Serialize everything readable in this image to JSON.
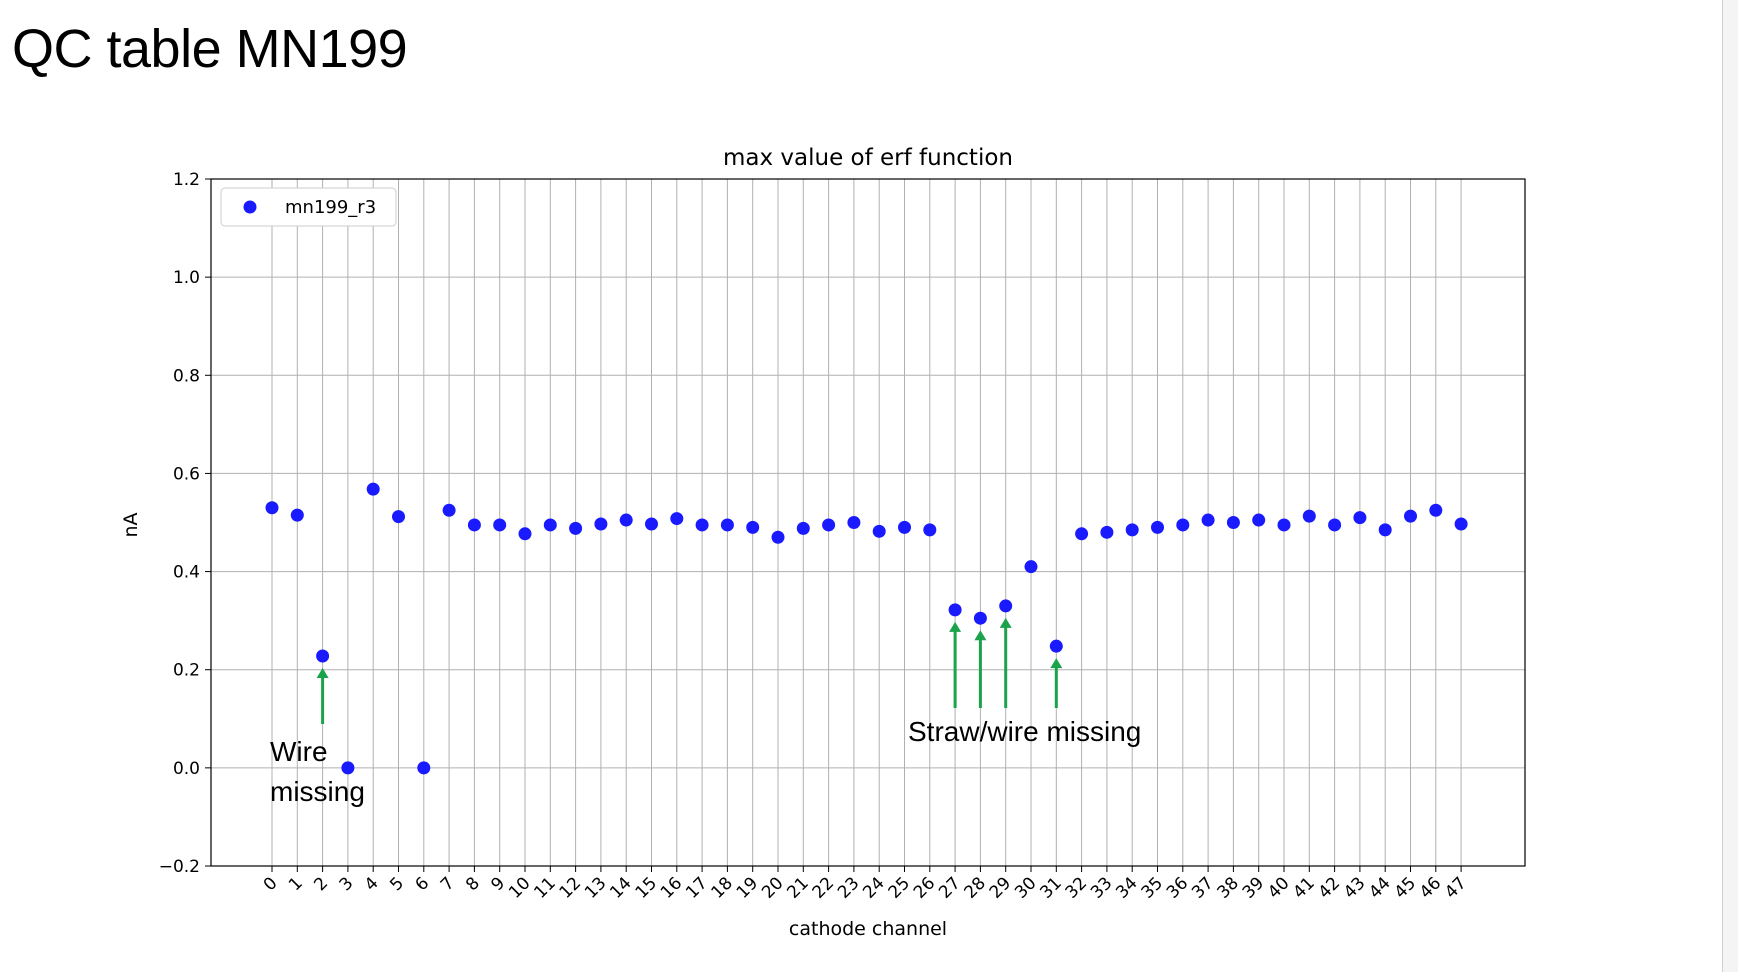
{
  "slide": {
    "title": "QC table MN199"
  },
  "annotations": {
    "wire_missing_line1": "Wire",
    "wire_missing_line2": "missing",
    "straw_wire_missing": "Straw/wire missing"
  },
  "colors": {
    "points": "#1a1aff",
    "arrows": "#1aa34a",
    "grid": "#b0b0b0"
  },
  "chart_data": {
    "type": "scatter",
    "title": "max value of erf function",
    "xlabel": "cathode channel",
    "ylabel": "nA",
    "ylim": [
      -0.2,
      1.2
    ],
    "yticks": [
      -0.2,
      0.0,
      0.2,
      0.4,
      0.6,
      0.8,
      1.0,
      1.2
    ],
    "ytick_labels": [
      "−0.2",
      "0.0",
      "0.2",
      "0.4",
      "0.6",
      "0.8",
      "1.0",
      "1.2"
    ],
    "xticks": [
      0,
      1,
      2,
      3,
      4,
      5,
      6,
      7,
      8,
      9,
      10,
      11,
      12,
      13,
      14,
      15,
      16,
      17,
      18,
      19,
      20,
      21,
      22,
      23,
      24,
      25,
      26,
      27,
      28,
      29,
      30,
      31,
      32,
      33,
      34,
      35,
      36,
      37,
      38,
      39,
      40,
      41,
      42,
      43,
      44,
      45,
      46,
      47
    ],
    "grid": true,
    "legend_position": "top-left",
    "series": [
      {
        "name": "mn199_r3",
        "x": [
          0,
          1,
          2,
          3,
          4,
          5,
          6,
          7,
          8,
          9,
          10,
          11,
          12,
          13,
          14,
          15,
          16,
          17,
          18,
          19,
          20,
          21,
          22,
          23,
          24,
          25,
          26,
          27,
          28,
          29,
          30,
          31,
          32,
          33,
          34,
          35,
          36,
          37,
          38,
          39,
          40,
          41,
          42,
          43,
          44,
          45,
          46,
          47
        ],
        "y": [
          0.53,
          0.515,
          0.228,
          0.0,
          0.568,
          0.512,
          0.0,
          0.525,
          0.495,
          0.495,
          0.477,
          0.495,
          0.488,
          0.497,
          0.505,
          0.497,
          0.508,
          0.495,
          0.495,
          0.49,
          0.47,
          0.488,
          0.495,
          0.5,
          0.482,
          0.49,
          0.485,
          0.322,
          0.305,
          0.33,
          0.41,
          0.248,
          0.477,
          0.48,
          0.485,
          0.49,
          0.495,
          0.505,
          0.5,
          0.505,
          0.495,
          0.513,
          0.495,
          0.51,
          0.485,
          0.513,
          0.525,
          0.497
        ]
      }
    ],
    "arrows_at_x": [
      2,
      27,
      28,
      29,
      31
    ]
  }
}
